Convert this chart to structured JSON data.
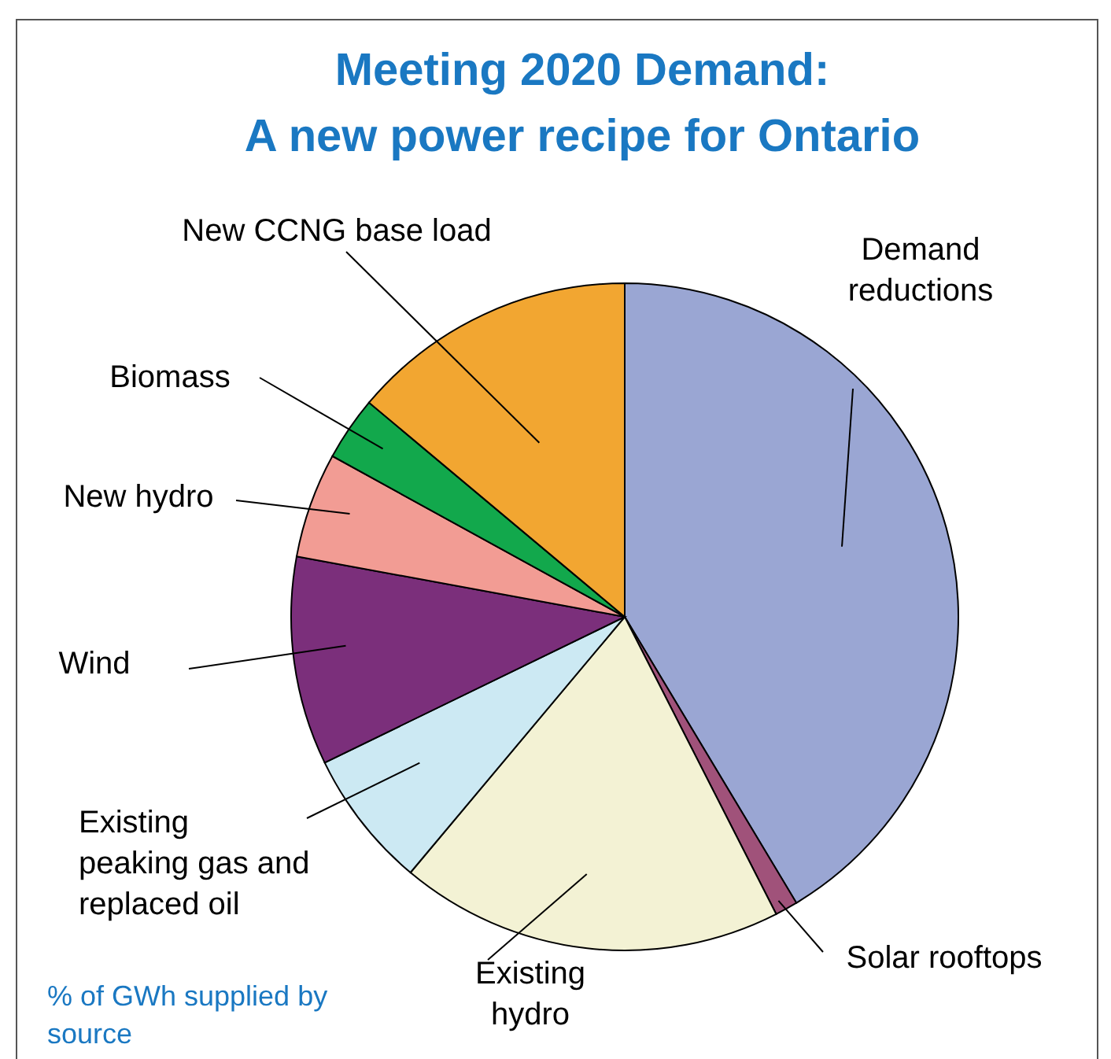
{
  "chart_data": {
    "type": "pie",
    "title": "Meeting 2020 Demand:",
    "subtitle": "A new power recipe for Ontario",
    "categories": [
      "Demand reductions",
      "Solar rooftops",
      "Existing hydro",
      "Existing peaking gas and replaced oil",
      "Wind",
      "New hydro",
      "Biomass",
      "New CCNG base load"
    ],
    "values": [
      41.4,
      1.1,
      18.6,
      6.7,
      10.1,
      5.1,
      3.1,
      13.9
    ],
    "colors": [
      "#9aa6d3",
      "#a0527a",
      "#f3f2d4",
      "#cce9f3",
      "#7b2f7b",
      "#f29c94",
      "#12a84c",
      "#f2a631"
    ],
    "annotations": [
      "% of GWh supplied by source"
    ]
  }
}
